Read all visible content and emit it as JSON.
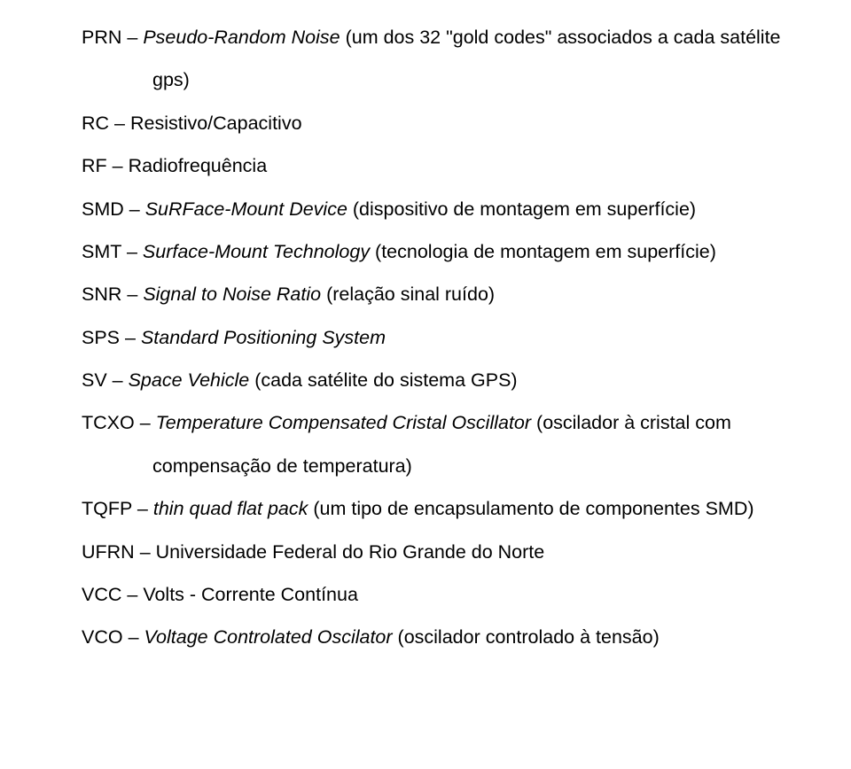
{
  "entries": [
    {
      "term": "PRN",
      "dash": " – ",
      "def_prefix": "Pseudo-Random Noise ",
      "def_paren": "(um dos 32 \"gold codes\" associados a cada satélite",
      "cont_indent": "gps)"
    },
    {
      "term": "RC",
      "dash": " – ",
      "def_prefix": "",
      "def_paren": "Resistivo/Capacitivo"
    },
    {
      "term": "RF",
      "dash": " – ",
      "def_prefix": "",
      "def_paren": "Radiofrequência"
    },
    {
      "term": "SMD",
      "dash": " – ",
      "def_prefix": "SuRFace-Mount Device ",
      "def_paren": "(dispositivo de montagem em superfície)"
    },
    {
      "term": "SMT",
      "dash": " – ",
      "def_prefix": "Surface-Mount Technology ",
      "def_paren": "(tecnologia de montagem em superfície)"
    },
    {
      "term": "SNR",
      "dash": " – ",
      "def_prefix": "Signal to Noise Ratio ",
      "def_paren": "(relação sinal ruído)"
    },
    {
      "term": "SPS",
      "dash": " – ",
      "def_prefix": "Standard Positioning System",
      "def_paren": ""
    },
    {
      "term": "SV",
      "dash": " – ",
      "def_prefix": "Space Vehicle ",
      "def_paren": "(cada satélite do sistema GPS)"
    },
    {
      "term": "TCXO",
      "dash": " – ",
      "def_prefix": "Temperature Compensated Cristal Oscillator ",
      "def_paren": "(oscilador à cristal com",
      "cont_indent": "compensação de temperatura)"
    },
    {
      "term": "TQFP",
      "dash": " – ",
      "def_prefix": "thin quad flat pack ",
      "def_paren": "(um tipo de encapsulamento de componentes SMD)"
    },
    {
      "term": "UFRN",
      "dash": " – ",
      "def_prefix": "",
      "def_paren": "Universidade Federal do Rio Grande do Norte"
    },
    {
      "term": "VCC",
      "dash": " – ",
      "def_prefix": "",
      "def_paren": "Volts - Corrente Contínua"
    },
    {
      "term": "VCO",
      "dash": " – ",
      "def_prefix": "Voltage Controlated Oscilator ",
      "def_paren": "(oscilador controlado à tensão)"
    }
  ]
}
